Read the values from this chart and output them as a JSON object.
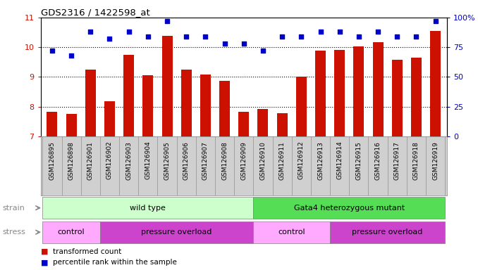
{
  "title": "GDS2316 / 1422598_at",
  "samples": [
    "GSM126895",
    "GSM126898",
    "GSM126901",
    "GSM126902",
    "GSM126903",
    "GSM126904",
    "GSM126905",
    "GSM126906",
    "GSM126907",
    "GSM126908",
    "GSM126909",
    "GSM126910",
    "GSM126911",
    "GSM126912",
    "GSM126913",
    "GSM126914",
    "GSM126915",
    "GSM126916",
    "GSM126917",
    "GSM126918",
    "GSM126919"
  ],
  "bar_values": [
    7.82,
    7.75,
    9.25,
    8.18,
    9.75,
    9.05,
    10.38,
    9.25,
    9.08,
    8.88,
    7.82,
    7.92,
    7.78,
    9.0,
    9.88,
    9.92,
    10.02,
    10.18,
    9.58,
    9.65,
    10.55
  ],
  "dot_values": [
    72,
    68,
    88,
    82,
    88,
    84,
    97,
    84,
    84,
    78,
    78,
    72,
    84,
    84,
    88,
    88,
    84,
    88,
    84,
    84,
    97
  ],
  "ylim_left": [
    7,
    11
  ],
  "ylim_right": [
    0,
    100
  ],
  "yticks_left": [
    7,
    8,
    9,
    10,
    11
  ],
  "yticks_right": [
    0,
    25,
    50,
    75,
    100
  ],
  "bar_color": "#cc1100",
  "dot_color": "#0000cc",
  "plot_bg_color": "#ffffff",
  "tick_bg_color": "#d0d0d0",
  "strain_groups": [
    {
      "label": "wild type",
      "start": 0,
      "end": 11,
      "color": "#ccffcc"
    },
    {
      "label": "Gata4 heterozygous mutant",
      "start": 11,
      "end": 21,
      "color": "#55dd55"
    }
  ],
  "stress_groups": [
    {
      "label": "control",
      "start": 0,
      "end": 3,
      "color": "#ffaaff"
    },
    {
      "label": "pressure overload",
      "start": 3,
      "end": 11,
      "color": "#cc44cc"
    },
    {
      "label": "control",
      "start": 11,
      "end": 15,
      "color": "#ffaaff"
    },
    {
      "label": "pressure overload",
      "start": 15,
      "end": 21,
      "color": "#cc44cc"
    }
  ],
  "label_color": "#888888",
  "gridline_color": "#000000",
  "spine_color": "#000000"
}
